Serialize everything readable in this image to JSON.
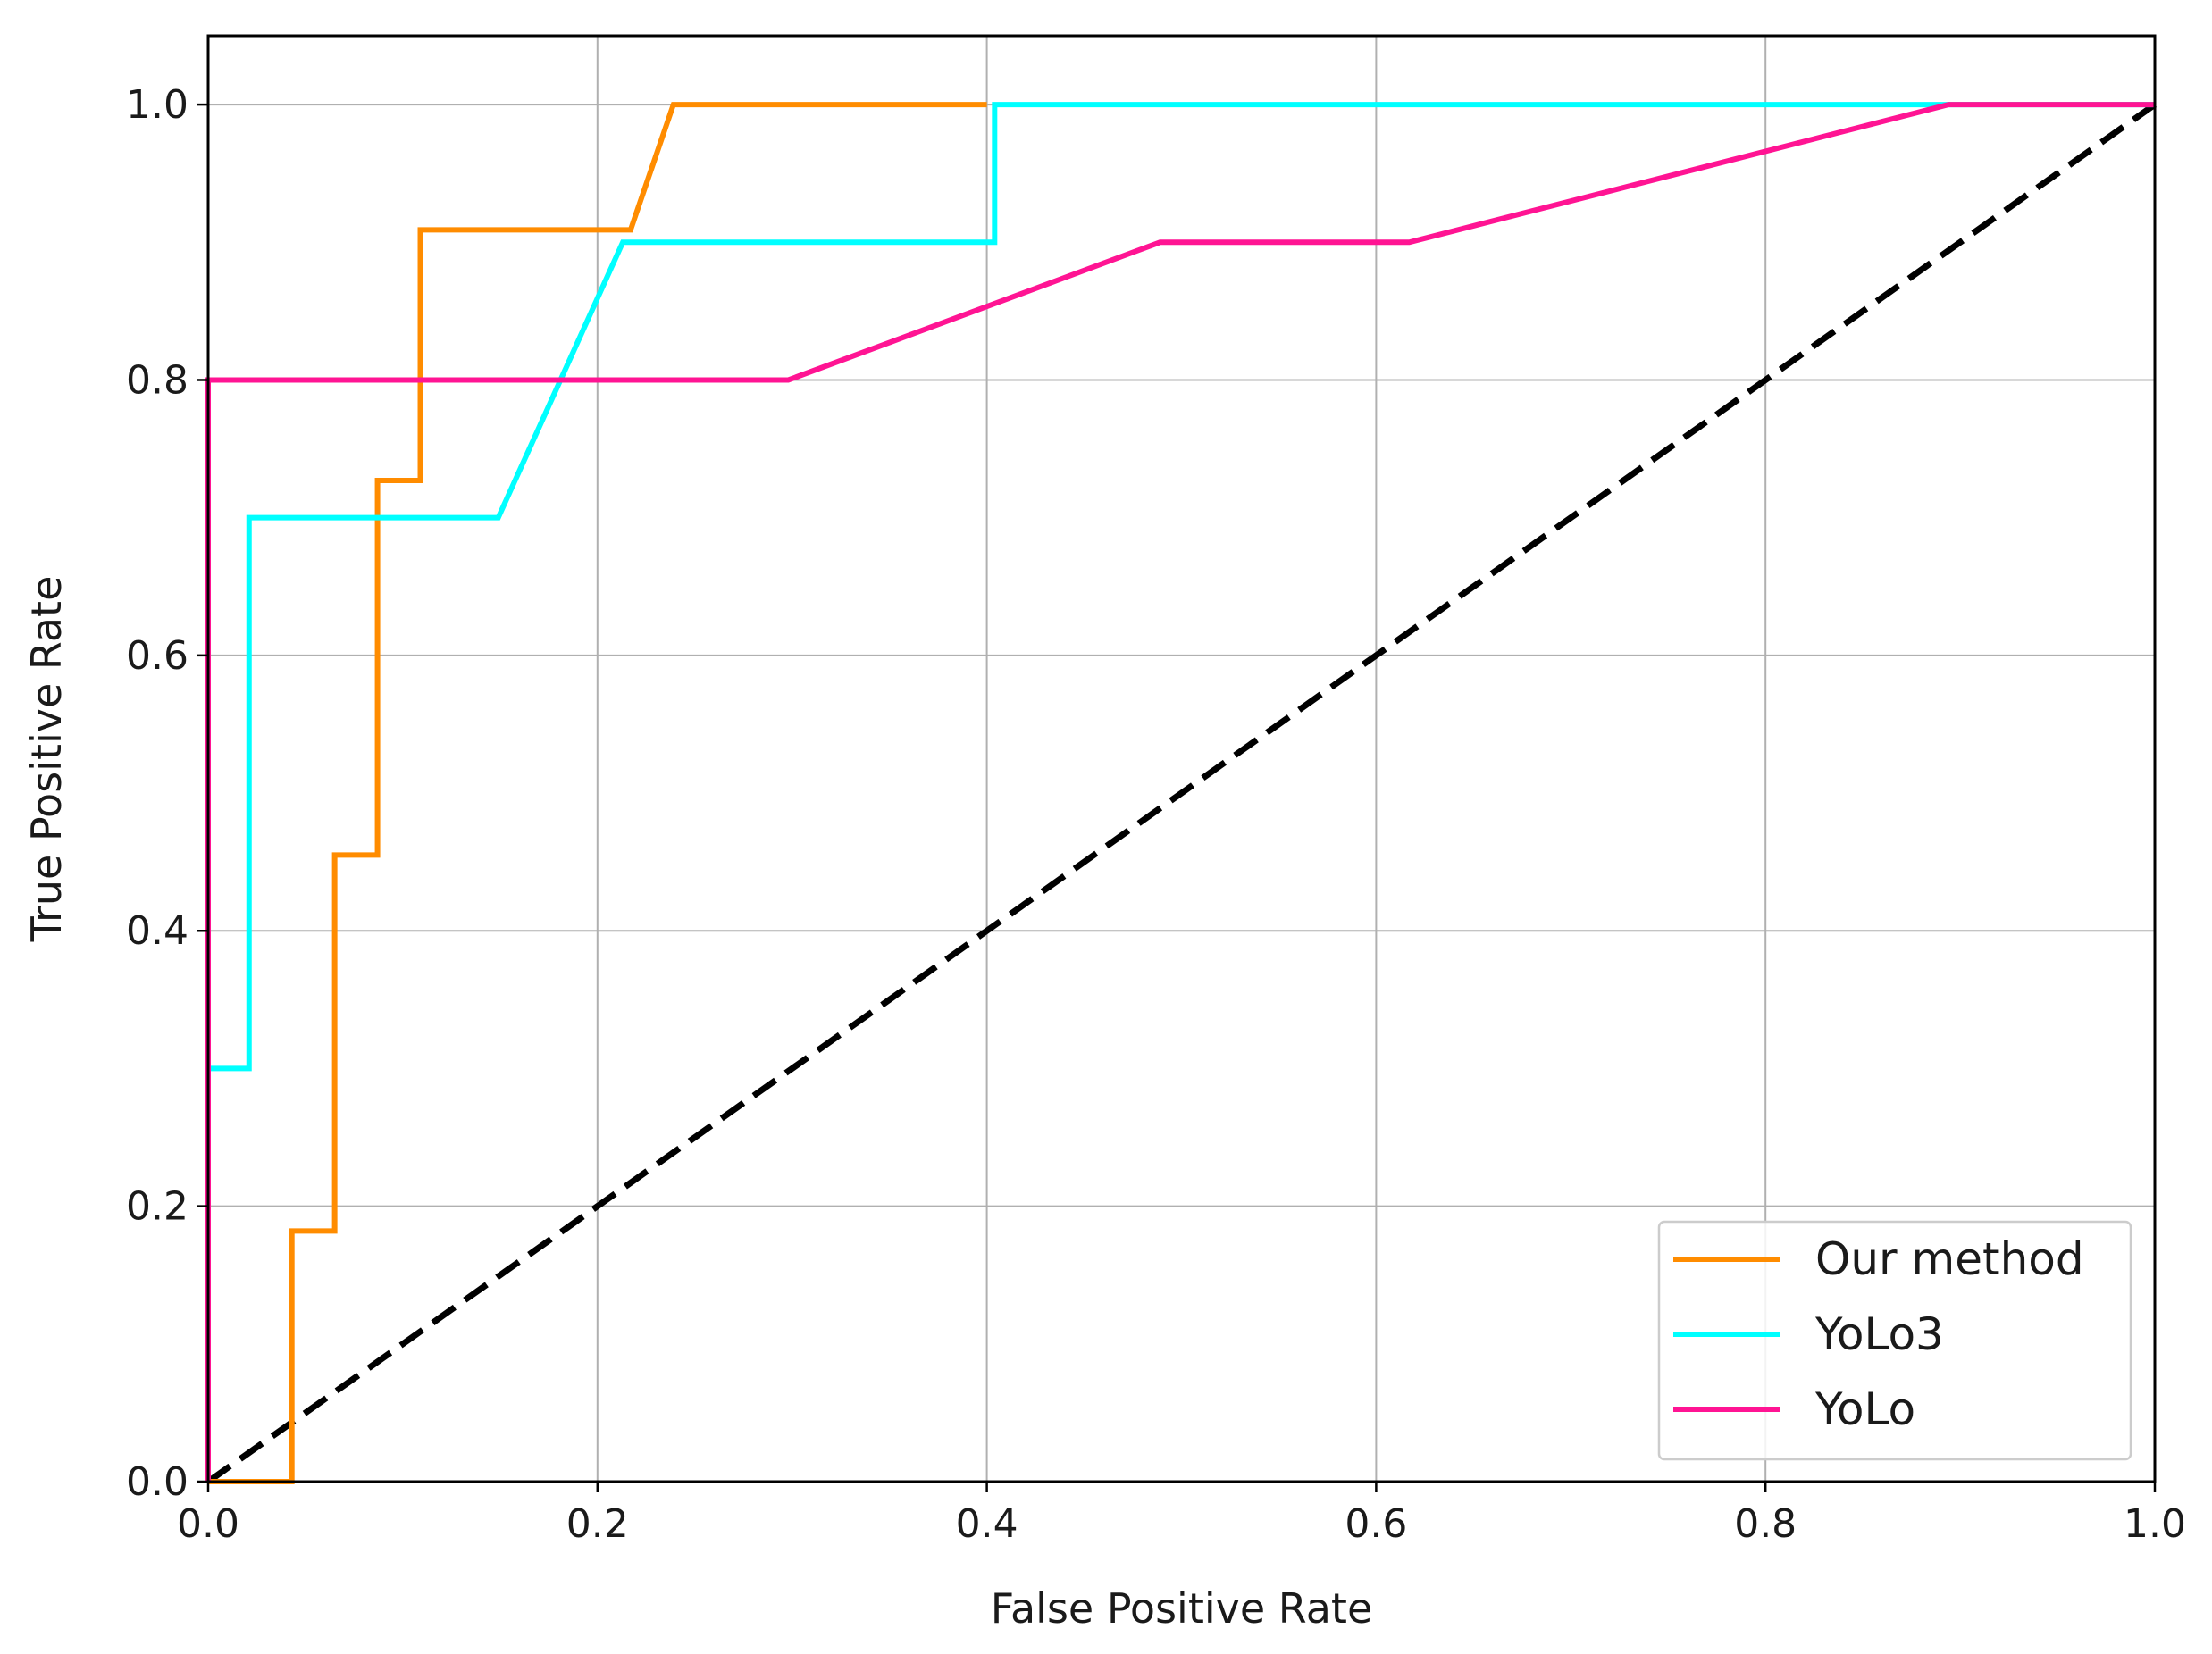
{
  "chart_data": {
    "type": "line",
    "xlabel": "False Positive Rate",
    "ylabel": "True Positive Rate",
    "xlim": [
      0.0,
      1.0
    ],
    "ylim": [
      0.0,
      1.05
    ],
    "xticks": [
      "0.0",
      "0.2",
      "0.4",
      "0.6",
      "0.8",
      "1.0"
    ],
    "yticks": [
      "0.0",
      "0.2",
      "0.4",
      "0.6",
      "0.8",
      "1.0"
    ],
    "grid": true,
    "legend_position": "bottom-right",
    "series": [
      {
        "name": "Our method",
        "color": "#ff8c00",
        "x": [
          0.0,
          0.0,
          0.043,
          0.043,
          0.065,
          0.065,
          0.087,
          0.087,
          0.109,
          0.109,
          0.217,
          0.239,
          0.4
        ],
        "y": [
          0.0,
          0.0,
          0.0,
          0.182,
          0.182,
          0.455,
          0.455,
          0.727,
          0.727,
          0.909,
          0.909,
          1.0,
          1.0
        ]
      },
      {
        "name": "YoLo3",
        "color": "#00ffff",
        "x": [
          0.0,
          0.0,
          0.021,
          0.021,
          0.149,
          0.213,
          0.404,
          0.404,
          0.894,
          1.0
        ],
        "y": [
          0.0,
          0.3,
          0.3,
          0.7,
          0.7,
          0.9,
          0.9,
          1.0,
          1.0,
          1.0
        ]
      },
      {
        "name": "YoLo",
        "color": "#ff1493",
        "x": [
          0.0,
          0.0,
          0.298,
          0.489,
          0.617,
          0.894,
          1.0
        ],
        "y": [
          0.0,
          0.8,
          0.8,
          0.9,
          0.9,
          1.0,
          1.0
        ]
      }
    ],
    "reference_line": {
      "color": "#000000",
      "style": "dashed",
      "x": [
        0.0,
        1.0
      ],
      "y": [
        0.0,
        1.0
      ]
    }
  }
}
